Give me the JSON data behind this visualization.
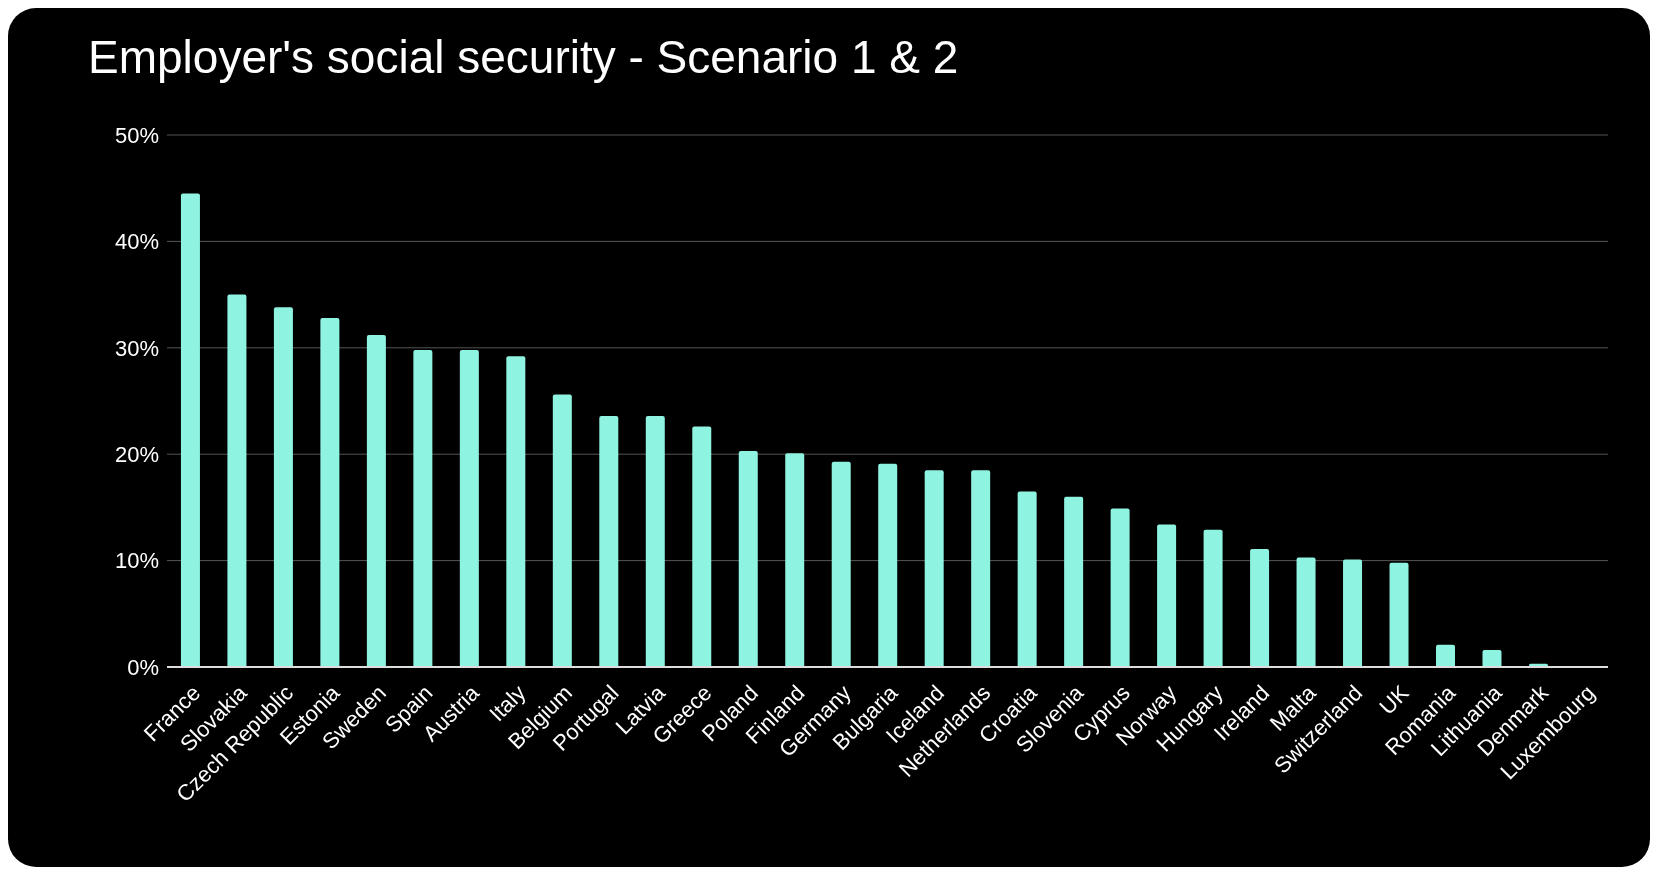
{
  "chart_data": {
    "type": "bar",
    "title": "Employer's social security - Scenario 1 & 2",
    "categories": [
      "France",
      "Slovakia",
      "Czech Republic",
      "Estonia",
      "Sweden",
      "Spain",
      "Austria",
      "Italy",
      "Belgium",
      "Portugal",
      "Latvia",
      "Greece",
      "Poland",
      "Finland",
      "Germany",
      "Bulgaria",
      "Iceland",
      "Netherlands",
      "Croatia",
      "Slovenia",
      "Cyprus",
      "Norway",
      "Hungary",
      "Ireland",
      "Malta",
      "Switzerland",
      "UK",
      "Romania",
      "Lithuania",
      "Denmark",
      "Luxembourg"
    ],
    "values": [
      44.5,
      35.0,
      33.8,
      32.8,
      31.2,
      29.8,
      29.8,
      29.2,
      25.6,
      23.6,
      23.6,
      22.6,
      20.3,
      20.1,
      19.3,
      19.1,
      18.5,
      18.5,
      16.5,
      16.0,
      14.9,
      13.4,
      12.9,
      11.1,
      10.3,
      10.1,
      9.8,
      2.1,
      1.6,
      0.3,
      0
    ],
    "color": "#8ff3e2",
    "ylim": [
      0,
      50
    ],
    "yticks": [
      {
        "value": 0,
        "label": "0%"
      },
      {
        "value": 10,
        "label": "10%"
      },
      {
        "value": 20,
        "label": "20%"
      },
      {
        "value": 30,
        "label": "30%"
      },
      {
        "value": 40,
        "label": "40%"
      },
      {
        "value": 50,
        "label": "50%"
      }
    ],
    "grid": "y"
  }
}
